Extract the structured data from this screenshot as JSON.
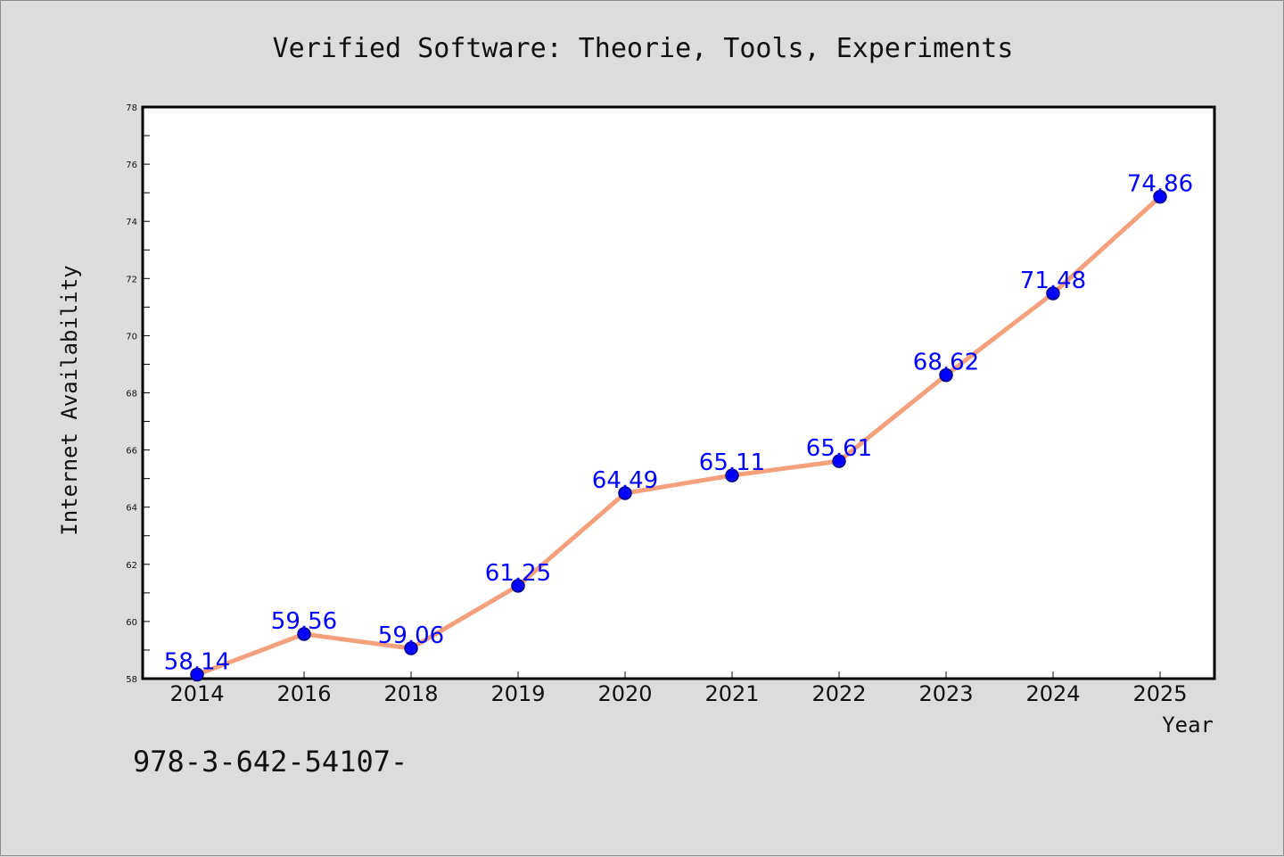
{
  "colors": {
    "background": "#dcdcdc",
    "plot_area": "#ffffff",
    "line": "#f4a07c",
    "marker_fill": "#0000ff",
    "marker_edge": "#00007a",
    "data_label": "#0000ff",
    "text": "#111111"
  },
  "footnote": "978-3-642-54107-",
  "chart_data": {
    "type": "line",
    "title": "Verified Software: Theorie, Tools, Experiments",
    "xlabel": "Year",
    "ylabel": "Internet Availability",
    "categories": [
      "2014",
      "2016",
      "2018",
      "2019",
      "2020",
      "2021",
      "2022",
      "2023",
      "2024",
      "2025"
    ],
    "series": [
      {
        "values": [
          58.14,
          59.56,
          59.06,
          61.25,
          64.49,
          65.11,
          65.61,
          68.62,
          71.48,
          74.86
        ],
        "labels": [
          "58.14",
          "59.56",
          "59.06",
          "61.25",
          "64.49",
          "65.11",
          "65.61",
          "68.62",
          "71.48",
          "74.86"
        ]
      }
    ],
    "ylim": [
      58,
      78
    ],
    "yticks": [
      "58",
      "60",
      "62",
      "64",
      "66",
      "68",
      "70",
      "72",
      "74",
      "76",
      "78"
    ],
    "grid": false,
    "legend": "none"
  }
}
